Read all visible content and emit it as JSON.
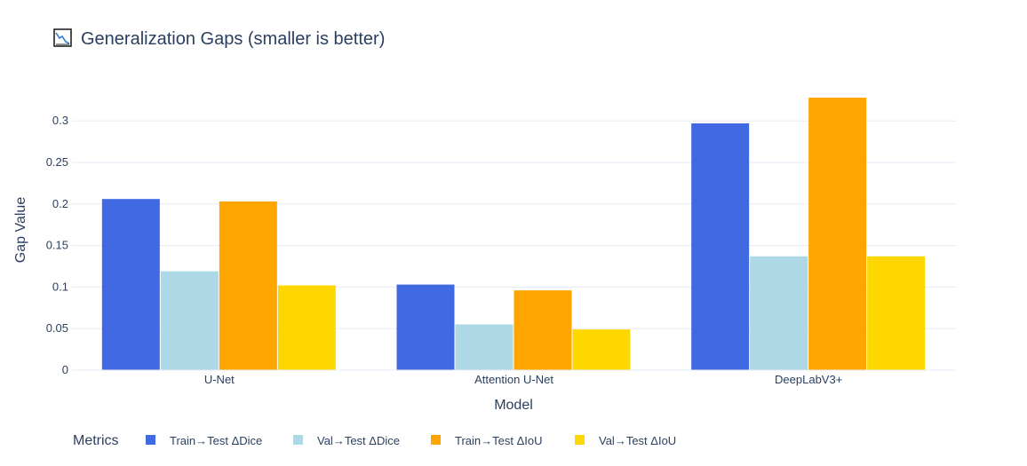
{
  "chart_data": {
    "type": "bar",
    "title": "Generalization Gaps (smaller is better)",
    "title_icon": "chart-decreasing-icon",
    "xlabel": "Model",
    "ylabel": "Gap Value",
    "categories": [
      "U-Net",
      "Attention U-Net",
      "DeepLabV3+"
    ],
    "series": [
      {
        "name": "Train→Test ΔDice",
        "color": "#4169E1",
        "values": [
          0.206,
          0.103,
          0.297
        ]
      },
      {
        "name": "Val→Test ΔDice",
        "color": "#ADD8E6",
        "values": [
          0.119,
          0.055,
          0.137
        ]
      },
      {
        "name": "Train→Test ΔIoU",
        "color": "#FFA500",
        "values": [
          0.203,
          0.096,
          0.328
        ]
      },
      {
        "name": "Val→Test ΔIoU",
        "color": "#FFD700",
        "values": [
          0.102,
          0.049,
          0.137
        ]
      }
    ],
    "ylim": [
      0,
      0.328
    ],
    "yticks": [
      0,
      0.05,
      0.1,
      0.15,
      0.2,
      0.25,
      0.3
    ],
    "ytick_labels": [
      "0",
      "0.05",
      "0.1",
      "0.15",
      "0.2",
      "0.25",
      "0.3"
    ],
    "grid": true,
    "legend": {
      "title": "Metrics",
      "placement": "bottom"
    }
  }
}
